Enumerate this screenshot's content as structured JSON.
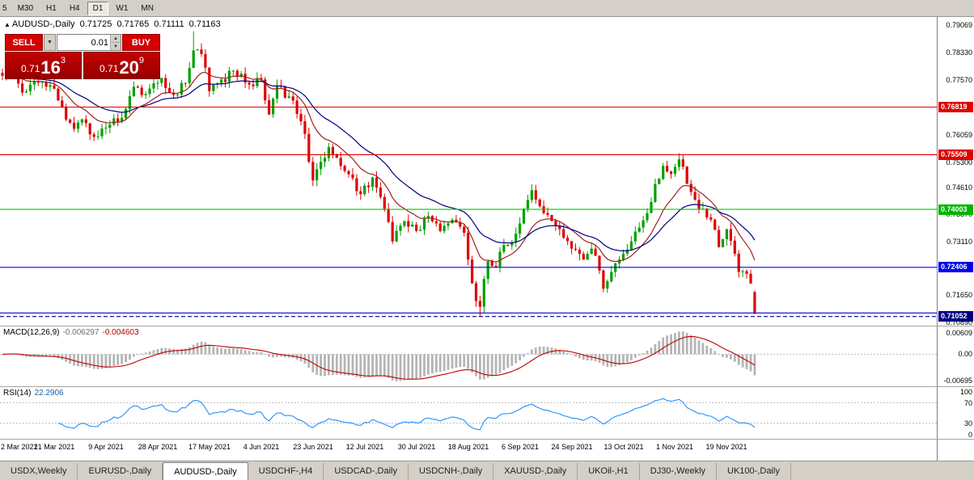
{
  "toolbar": {
    "timeframes": [
      {
        "label": "5",
        "cut": true
      },
      {
        "label": "M30"
      },
      {
        "label": "H1"
      },
      {
        "label": "H4"
      },
      {
        "label": "D1",
        "active": true
      },
      {
        "label": "W1"
      },
      {
        "label": "MN"
      }
    ]
  },
  "title": {
    "marker": "▲",
    "symbol": "AUDUSD-,Daily",
    "open": "0.71725",
    "high": "0.71765",
    "low": "0.71111",
    "close": "0.71163"
  },
  "trade": {
    "sell_label": "SELL",
    "buy_label": "BUY",
    "volume": "0.01",
    "dropdown_icon": "▼",
    "spin_up": "▲",
    "spin_down": "▼",
    "sell_price": {
      "prefix": "0.71",
      "big": "16",
      "sup": "3"
    },
    "buy_price": {
      "prefix": "0.71",
      "big": "20",
      "sup": "9"
    }
  },
  "chart_data": {
    "type": "candlestick",
    "title": "AUDUSD-,Daily",
    "symbol": "AUDUSD",
    "timeframe": "Daily",
    "last_bar_ohlc": [
      0.71725,
      0.71765,
      0.71111,
      0.71163
    ],
    "price_range": [
      0.708,
      0.793
    ],
    "bars_total": 190,
    "bar_anchors": [
      [
        0,
        0.7768
      ],
      [
        2,
        0.7782
      ],
      [
        5,
        0.7722
      ],
      [
        8,
        0.7752
      ],
      [
        12,
        0.7742
      ],
      [
        14,
        0.77
      ],
      [
        18,
        0.7622
      ],
      [
        20,
        0.7648
      ],
      [
        23,
        0.76
      ],
      [
        26,
        0.7625
      ],
      [
        30,
        0.7652
      ],
      [
        33,
        0.7738
      ],
      [
        36,
        0.7718
      ],
      [
        40,
        0.7762
      ],
      [
        43,
        0.7715
      ],
      [
        46,
        0.7748
      ],
      [
        48,
        0.7838
      ],
      [
        50,
        0.7828
      ],
      [
        52,
        0.7726
      ],
      [
        54,
        0.7748
      ],
      [
        58,
        0.7782
      ],
      [
        62,
        0.7744
      ],
      [
        65,
        0.7758
      ],
      [
        67,
        0.7662
      ],
      [
        69,
        0.774
      ],
      [
        73,
        0.77
      ],
      [
        76,
        0.7608
      ],
      [
        78,
        0.748
      ],
      [
        82,
        0.7572
      ],
      [
        86,
        0.7506
      ],
      [
        90,
        0.7442
      ],
      [
        93,
        0.7488
      ],
      [
        96,
        0.7402
      ],
      [
        98,
        0.7312
      ],
      [
        101,
        0.7368
      ],
      [
        105,
        0.7344
      ],
      [
        107,
        0.7382
      ],
      [
        110,
        0.734
      ],
      [
        113,
        0.7372
      ],
      [
        116,
        0.7336
      ],
      [
        117,
        0.7262
      ],
      [
        119,
        0.7148
      ],
      [
        120,
        0.7132
      ],
      [
        122,
        0.7258
      ],
      [
        124,
        0.7242
      ],
      [
        126,
        0.7302
      ],
      [
        128,
        0.731
      ],
      [
        131,
        0.7402
      ],
      [
        133,
        0.7453
      ],
      [
        136,
        0.739
      ],
      [
        139,
        0.7356
      ],
      [
        141,
        0.7322
      ],
      [
        143,
        0.7292
      ],
      [
        146,
        0.7262
      ],
      [
        148,
        0.7292
      ],
      [
        150,
        0.7232
      ],
      [
        151,
        0.7182
      ],
      [
        153,
        0.7228
      ],
      [
        155,
        0.7262
      ],
      [
        158,
        0.7312
      ],
      [
        160,
        0.735
      ],
      [
        162,
        0.739
      ],
      [
        164,
        0.747
      ],
      [
        166,
        0.752
      ],
      [
        168,
        0.7498
      ],
      [
        170,
        0.7538
      ],
      [
        171,
        0.7518
      ],
      [
        173,
        0.7448
      ],
      [
        175,
        0.7402
      ],
      [
        178,
        0.7372
      ],
      [
        180,
        0.7296
      ],
      [
        182,
        0.7346
      ],
      [
        184,
        0.7278
      ],
      [
        185,
        0.7228
      ],
      [
        186,
        0.723
      ],
      [
        188,
        0.7196
      ],
      [
        189,
        0.7116
      ]
    ],
    "overrides": [
      {
        "i": 48,
        "h": 0.7891
      },
      {
        "i": 120,
        "l": 0.7106
      },
      {
        "i": 170,
        "h": 0.7555
      },
      {
        "i": 189,
        "o": 0.71725,
        "h": 0.71765,
        "l": 0.71111,
        "c": 0.71163
      }
    ],
    "ma_fast": {
      "period": 12,
      "color": "#a02020"
    },
    "ma_slow": {
      "period": 26,
      "color": "#000080"
    },
    "up_color": "#00a000",
    "down_color": "#e00000",
    "axis_ticks": [
      "0.79069",
      "0.78330",
      "0.77570",
      "0.76059",
      "0.75300",
      "0.74610",
      "0.73870",
      "0.73110",
      "0.71650",
      "0.70890"
    ],
    "hlines": [
      {
        "price": 0.76819,
        "color": "#e00000",
        "label": "0.76819",
        "tag": "#e00000"
      },
      {
        "price": 0.75509,
        "color": "#e00000",
        "label": "0.75509",
        "tag": "#e00000"
      },
      {
        "price": 0.74003,
        "color": "#00cc00",
        "label": "0.74003",
        "tag": "#00b400"
      },
      {
        "price": 0.72406,
        "color": "#0000ff",
        "label": "0.72406",
        "tag": "#0000ee"
      },
      {
        "price": 0.7115,
        "color": "#0000cc"
      },
      {
        "price": 0.71052,
        "color": "#000080",
        "label": "0.71052",
        "tag": "#000080",
        "dashed": true
      }
    ],
    "x_labels": [
      "2 Mar 2021",
      "21 Mar 2021",
      "9 Apr 2021",
      "28 Apr 2021",
      "17 May 2021",
      "4 Jun 2021",
      "23 Jun 2021",
      "12 Jul 2021",
      "30 Jul 2021",
      "18 Aug 2021",
      "6 Sep 2021",
      "24 Sep 2021",
      "13 Oct 2021",
      "1 Nov 2021",
      "19 Nov 2021"
    ],
    "x_label_step": 13,
    "macd": {
      "label": "MACD(12,26,9)",
      "value": "-0.006297",
      "signal_value": "-0.004603",
      "axis_top": "0.00609",
      "axis_zero": "0.00",
      "axis_bottom": "-0.00695",
      "hist_color": "#b5b5b5",
      "signal_color": "#c00000"
    },
    "rsi": {
      "label": "RSI(14)",
      "value": "22.2906",
      "period": 14,
      "color": "#1e90ff",
      "levels": [
        70,
        30
      ],
      "axis": [
        "100",
        "70",
        "30",
        "0"
      ]
    }
  },
  "tabs": {
    "active_index": 2,
    "items": [
      "USDX,Weekly",
      "EURUSD-,Daily",
      "AUDUSD-,Daily",
      "USDCHF-,H4",
      "USDCAD-,Daily",
      "USDCNH-,Daily",
      "XAUUSD-,Daily",
      "UKOil-,H1",
      "DJ30-,Weekly",
      "UK100-,Daily"
    ]
  }
}
